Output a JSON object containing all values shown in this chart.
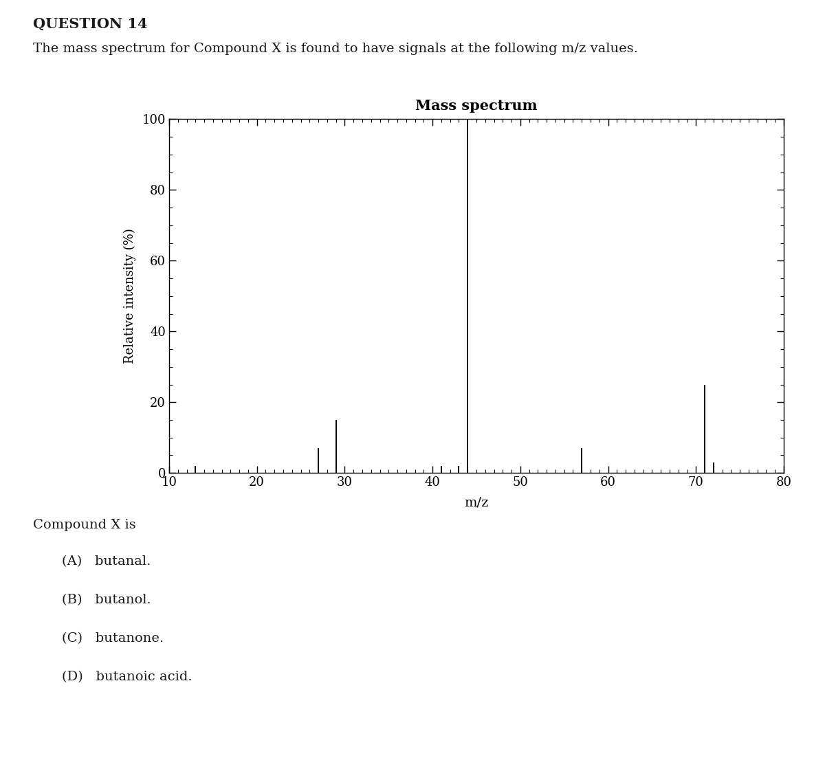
{
  "question_number": "QUESTION 14",
  "question_text": "The mass spectrum for Compound X is found to have signals at the following m/z values.",
  "chart_title": "Mass spectrum",
  "xlabel": "m/z",
  "ylabel": "Relative intensity (%)",
  "peaks": [
    {
      "mz": 13,
      "intensity": 2
    },
    {
      "mz": 27,
      "intensity": 7
    },
    {
      "mz": 29,
      "intensity": 15
    },
    {
      "mz": 41,
      "intensity": 2
    },
    {
      "mz": 43,
      "intensity": 2
    },
    {
      "mz": 44,
      "intensity": 100
    },
    {
      "mz": 57,
      "intensity": 7
    },
    {
      "mz": 71,
      "intensity": 25
    },
    {
      "mz": 72,
      "intensity": 3
    }
  ],
  "xmin": 10,
  "xmax": 80,
  "ymin": 0,
  "ymax": 100,
  "yticks": [
    0,
    20,
    40,
    60,
    80,
    100
  ],
  "xticks": [
    10,
    20,
    30,
    40,
    50,
    60,
    70,
    80
  ],
  "choices_label": "Compound X is",
  "choices": [
    "(A)   butanal.",
    "(B)   butanol.",
    "(C)   butanone.",
    "(D)   butanoic acid."
  ],
  "peak_color": "#000000",
  "background_color": "#ffffff",
  "text_color": "#1a1a1a"
}
